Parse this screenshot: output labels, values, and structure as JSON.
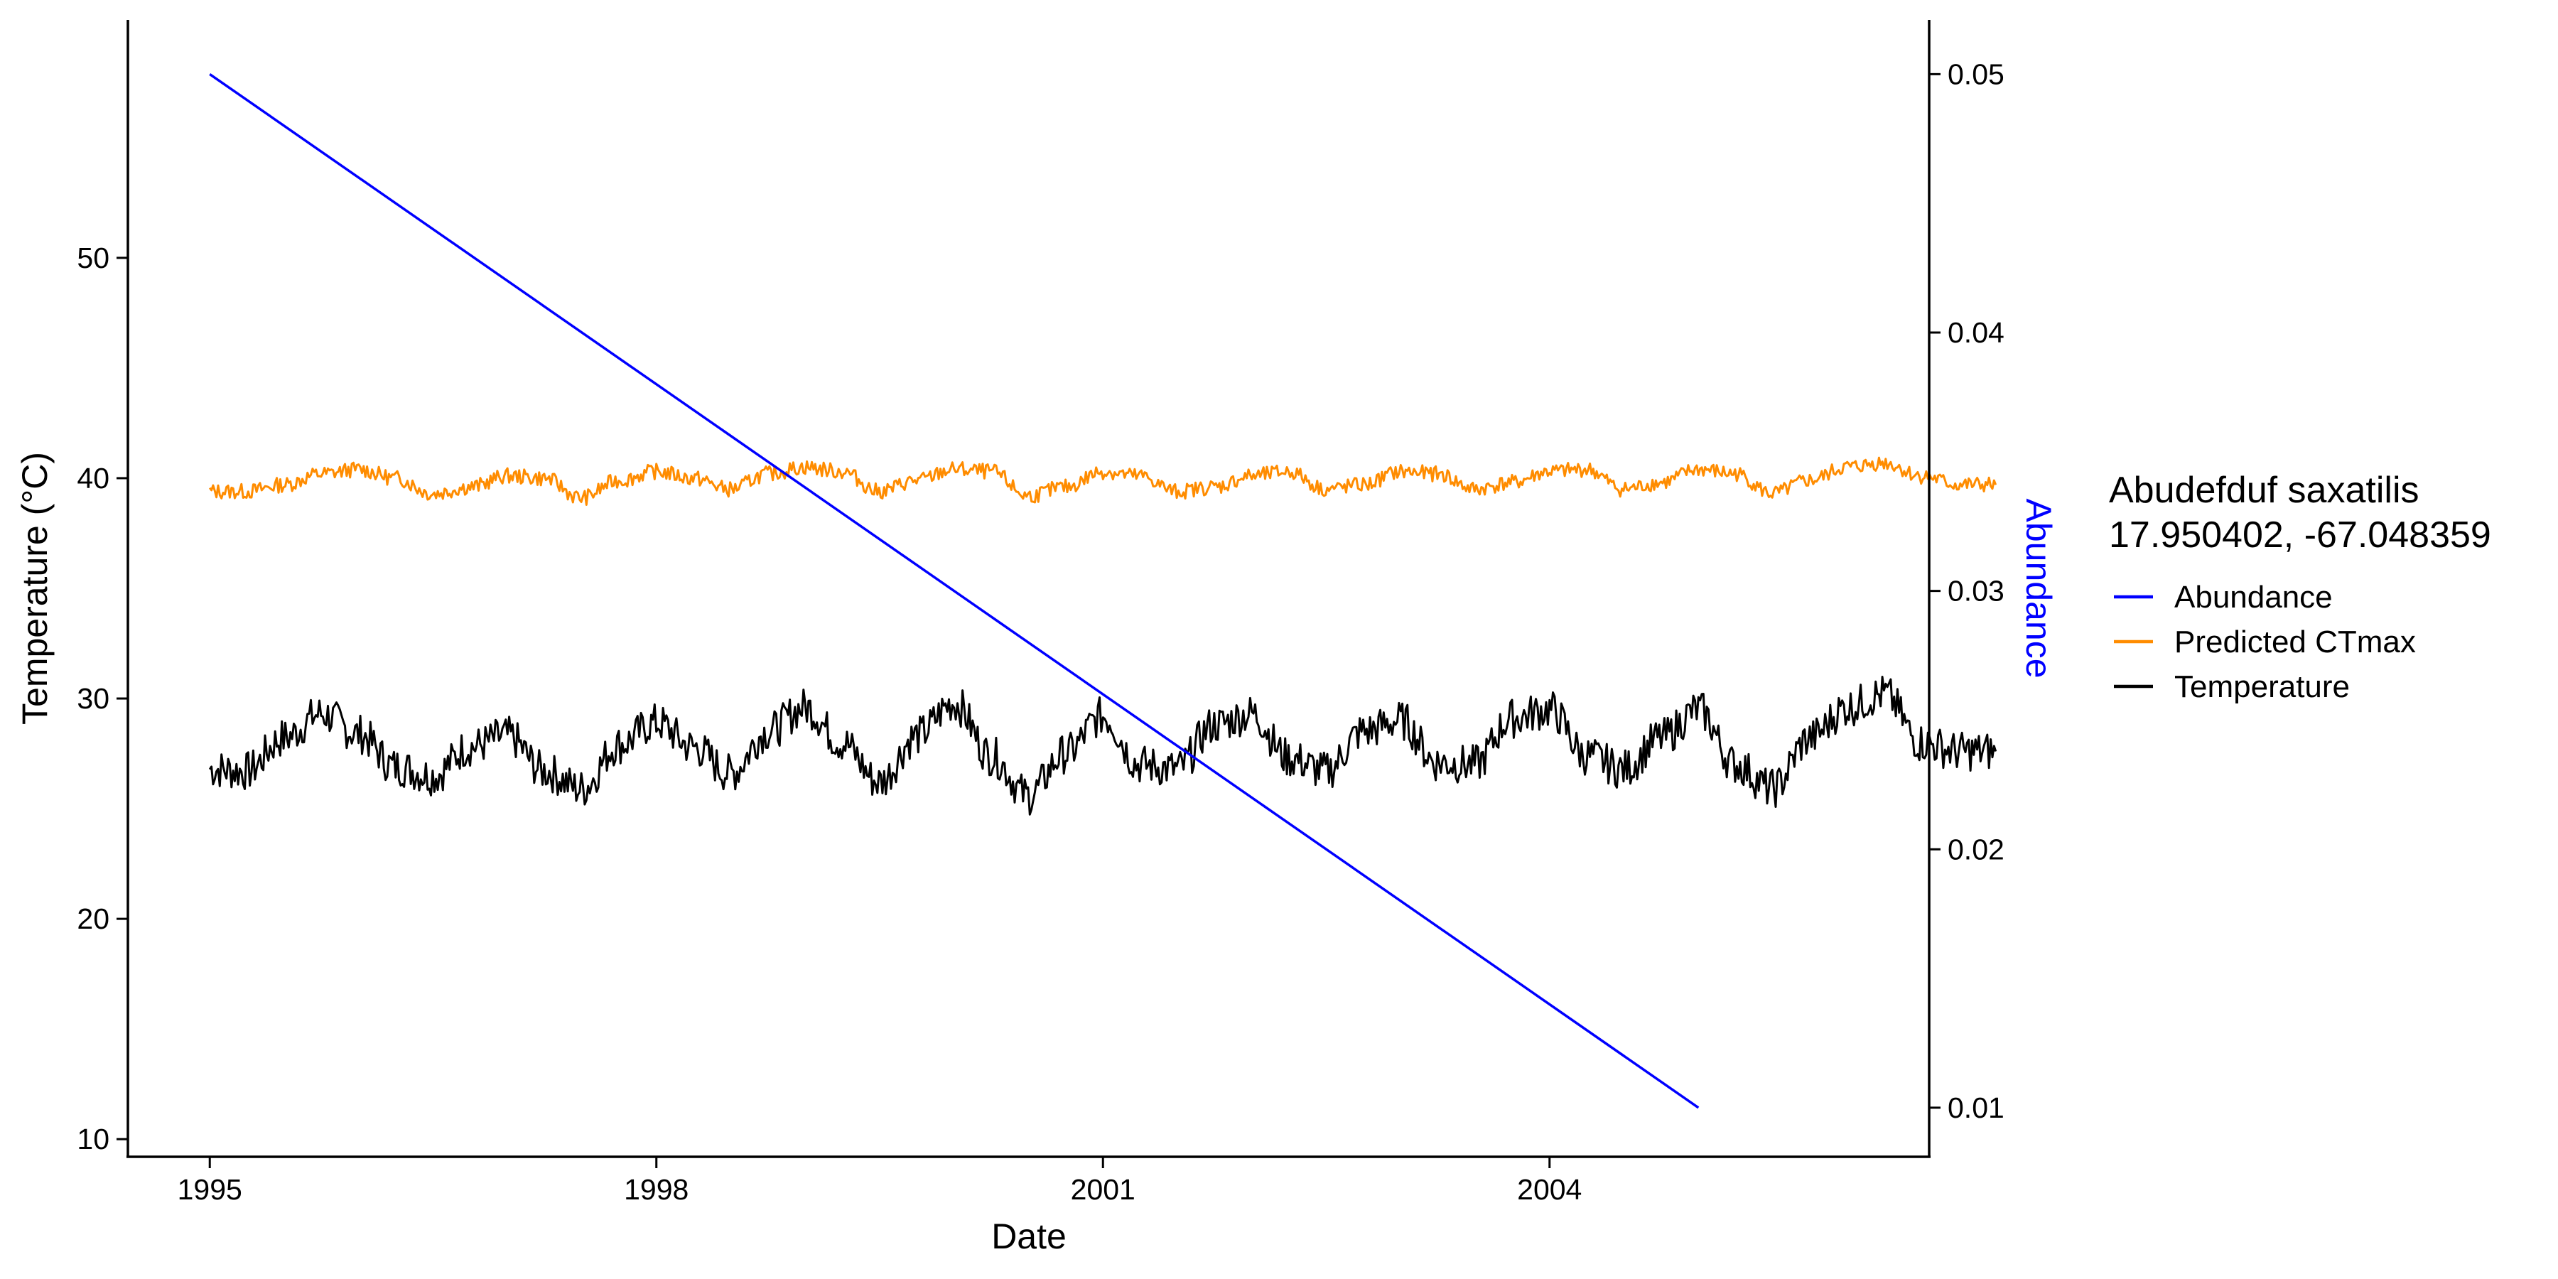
{
  "chart_data": {
    "type": "line",
    "xlabel": "Date",
    "ylabel": "Temperature (°C)",
    "y2label": "Abundance",
    "x_ticks": [
      "1995",
      "1998",
      "2001",
      "2004"
    ],
    "x_tick_values": [
      1995,
      1998,
      2001,
      2004
    ],
    "xlim": [
      1994.45,
      2006.55
    ],
    "y_ticks": [
      "10",
      "20",
      "30",
      "40",
      "50"
    ],
    "y_tick_values": [
      10,
      20,
      30,
      40,
      50
    ],
    "ylim": [
      9.2,
      60.8
    ],
    "y2_ticks": [
      "0.01",
      "0.02",
      "0.03",
      "0.04",
      "0.05"
    ],
    "y2_tick_values": [
      0.01,
      0.02,
      0.03,
      0.04,
      0.05
    ],
    "y2lim": [
      0.0081,
      0.0521
    ],
    "grid": false,
    "legend": {
      "position": "right",
      "title": [
        "Abudefduf saxatilis",
        "17.950402, -67.048359"
      ],
      "entries": [
        {
          "label": "Abundance",
          "color": "#0000FF"
        },
        {
          "label": "Predicted CTmax",
          "color": "#FF8C00"
        },
        {
          "label": "Temperature",
          "color": "#000000"
        }
      ]
    },
    "series": [
      {
        "name": "Abundance",
        "axis": "right",
        "color": "#0000FF",
        "x": [
          "1995-01-01",
          "2005-01-01"
        ],
        "y": [
          0.05,
          0.01
        ]
      },
      {
        "name": "Predicted CTmax",
        "axis": "left",
        "color": "#FF8C00",
        "x": [
          "1995-01-01",
          "1995-04-01",
          "1995-07-01",
          "1995-10-01",
          "1996-01-01",
          "1996-04-01",
          "1996-07-01",
          "1996-10-01",
          "1997-01-01",
          "1997-04-01",
          "1997-07-01",
          "1997-10-01",
          "1998-01-01",
          "1998-04-01",
          "1998-07-01",
          "1998-10-01",
          "1999-01-01",
          "1999-04-01",
          "1999-07-01",
          "1999-10-01",
          "2000-01-01",
          "2000-04-01",
          "2000-07-01",
          "2000-10-01",
          "2001-01-01",
          "2001-04-01",
          "2001-07-01",
          "2001-10-01",
          "2002-01-01",
          "2002-04-01",
          "2002-07-01",
          "2002-10-01",
          "2003-01-01",
          "2003-04-01",
          "2003-07-01",
          "2003-10-01",
          "2004-01-01",
          "2004-04-01",
          "2004-07-01",
          "2004-10-01",
          "2005-01-01",
          "2005-04-01",
          "2005-07-01",
          "2005-10-01",
          "2006-01-01",
          "2006-04-01",
          "2006-07-01",
          "2006-10-01",
          "2006-12-31"
        ],
        "y": [
          39.4,
          39.4,
          39.7,
          40.2,
          40.4,
          40.0,
          39.3,
          39.6,
          40.1,
          40.0,
          39.1,
          39.9,
          40.3,
          40.0,
          39.5,
          40.2,
          40.5,
          40.3,
          39.4,
          39.9,
          40.4,
          40.3,
          39.2,
          39.6,
          40.3,
          40.1,
          39.4,
          39.6,
          40.1,
          40.3,
          39.5,
          39.7,
          40.3,
          40.2,
          39.5,
          39.8,
          40.3,
          40.4,
          39.5,
          39.8,
          40.4,
          40.2,
          39.3,
          39.9,
          40.5,
          40.7,
          40.1,
          39.7,
          39.7
        ]
      },
      {
        "name": "Temperature",
        "axis": "left",
        "color": "#000000",
        "x": [
          "1995-01-01",
          "1995-04-01",
          "1995-07-01",
          "1995-10-01",
          "1996-01-01",
          "1996-04-01",
          "1996-07-01",
          "1996-10-01",
          "1997-01-01",
          "1997-04-01",
          "1997-07-01",
          "1997-10-01",
          "1998-01-01",
          "1998-04-01",
          "1998-07-01",
          "1998-10-01",
          "1999-01-01",
          "1999-04-01",
          "1999-07-01",
          "1999-10-01",
          "2000-01-01",
          "2000-04-01",
          "2000-07-01",
          "2000-10-01",
          "2001-01-01",
          "2001-04-01",
          "2001-07-01",
          "2001-10-01",
          "2002-01-01",
          "2002-04-01",
          "2002-07-01",
          "2002-10-01",
          "2003-01-01",
          "2003-04-01",
          "2003-07-01",
          "2003-10-01",
          "2004-01-01",
          "2004-04-01",
          "2004-07-01",
          "2004-10-01",
          "2005-01-01",
          "2005-04-01",
          "2005-07-01",
          "2005-10-01",
          "2006-01-01",
          "2006-04-01",
          "2006-07-01",
          "2006-10-01",
          "2006-12-31"
        ],
        "y": [
          26.8,
          26.7,
          28.2,
          29.3,
          28.4,
          26.9,
          26.5,
          27.8,
          28.3,
          26.7,
          25.9,
          27.9,
          28.9,
          27.8,
          26.6,
          28.5,
          29.6,
          28.0,
          26.2,
          28.3,
          29.8,
          27.4,
          25.6,
          27.5,
          29.2,
          27.0,
          26.8,
          28.8,
          29.3,
          27.3,
          26.7,
          28.5,
          29.0,
          27.1,
          27.0,
          29.1,
          29.5,
          27.4,
          26.8,
          28.2,
          29.5,
          27.0,
          25.9,
          28.2,
          29.6,
          30.2,
          28.0,
          27.6,
          27.6
        ]
      }
    ]
  }
}
